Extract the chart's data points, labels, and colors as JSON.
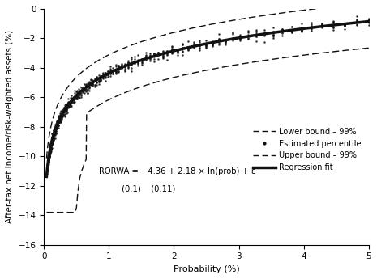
{
  "title": "",
  "xlabel": "Probability (%)",
  "ylabel": "After-tax net income/risk-weighted assets (%)",
  "xlim": [
    0,
    5
  ],
  "ylim": [
    -16,
    0
  ],
  "xticks": [
    0,
    1,
    2,
    3,
    4,
    5
  ],
  "yticks": [
    0,
    -2,
    -4,
    -6,
    -8,
    -10,
    -12,
    -14,
    -16
  ],
  "regression_intercept": -4.36,
  "regression_slope": 2.18,
  "annotation_line1": "RORWA = −4.36 + 2.18 × ln(prob) + ε",
  "annotation_line2": "         (0.1)    (0.11)",
  "legend_labels": [
    "Lower bound – 99%",
    "Estimated percentile",
    "Upper bound – 99%",
    "Regression fit"
  ],
  "line_color": "#111111",
  "prob_min": 0.04,
  "prob_max": 5.0,
  "n_points": 500
}
